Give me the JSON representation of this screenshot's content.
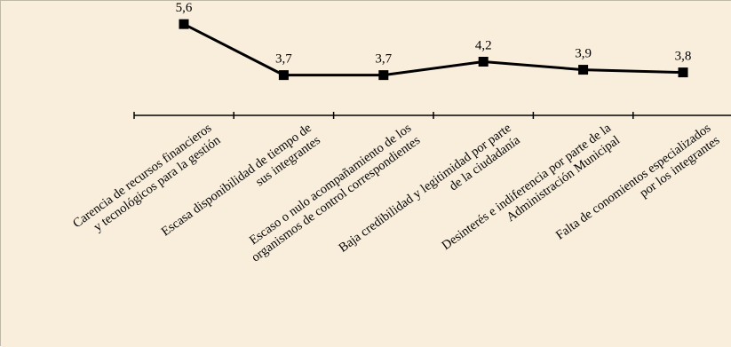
{
  "colors": {
    "background": "#F9EEDC",
    "line": "#000000",
    "axis": "#000000",
    "text": "#000000"
  },
  "chart_data": {
    "type": "line",
    "categories": [
      [
        "Carencia de recursos financieros",
        "y tecnológicos para la gestión"
      ],
      [
        "Escasa disponibilidad de tiempo de",
        "sus integrantes"
      ],
      [
        "Escaso o nulo acompañamiento de los",
        "organismos de control correspondientes"
      ],
      [
        "Baja credibilidad y legitimidad por parte",
        "de la ciudadanía"
      ],
      [
        "Desinterés e indiferencia por parte de la",
        "Administración Municipal"
      ],
      [
        "Falta de conomientos especializados",
        "por los integrantes"
      ]
    ],
    "series": [
      {
        "values": [
          5.6,
          3.7,
          3.7,
          4.2,
          3.9,
          3.8
        ],
        "data_labels": [
          "5,6",
          "3,7",
          "3,7",
          "4,2",
          "3,9",
          "3,8"
        ],
        "marker": "square",
        "color": "#000000"
      }
    ],
    "title": "",
    "xlabel": "",
    "ylabel": "",
    "ylim": [
      2.2,
      6.2
    ],
    "grid": false,
    "legend": "none",
    "y_axis_visible": false,
    "tick_label_rotation": "diagonal"
  }
}
